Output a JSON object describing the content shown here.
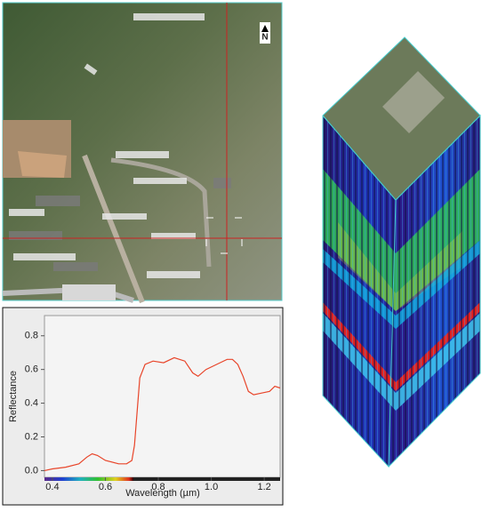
{
  "north_label": "N",
  "chart_data": {
    "type": "line",
    "x_label": "Wavelength (µm)",
    "y_label": "Reflectance",
    "xlim": [
      0.37,
      1.26
    ],
    "ylim": [
      -0.04,
      0.92
    ],
    "xticks": [
      0.4,
      0.6,
      0.8,
      {
        "value": 1,
        "label": "1.0"
      },
      1.2
    ],
    "yticks": [
      {
        "value": 0,
        "label": "0.0"
      },
      0.2,
      0.4,
      0.6,
      0.8
    ],
    "series": [
      {
        "color": "#e8452a",
        "x": [
          0.37,
          0.4,
          0.45,
          0.5,
          0.53,
          0.55,
          0.57,
          0.6,
          0.65,
          0.68,
          0.7,
          0.71,
          0.72,
          0.73,
          0.75,
          0.78,
          0.82,
          0.86,
          0.9,
          0.93,
          0.95,
          0.98,
          1.02,
          1.06,
          1.08,
          1.1,
          1.12,
          1.14,
          1.16,
          1.19,
          1.22,
          1.24,
          1.26
        ],
        "values": [
          0.0,
          0.01,
          0.02,
          0.04,
          0.08,
          0.1,
          0.09,
          0.06,
          0.04,
          0.04,
          0.06,
          0.15,
          0.35,
          0.55,
          0.63,
          0.65,
          0.64,
          0.67,
          0.65,
          0.58,
          0.56,
          0.6,
          0.63,
          0.66,
          0.66,
          0.63,
          0.56,
          0.47,
          0.45,
          0.46,
          0.47,
          0.5,
          0.49
        ]
      }
    ]
  }
}
